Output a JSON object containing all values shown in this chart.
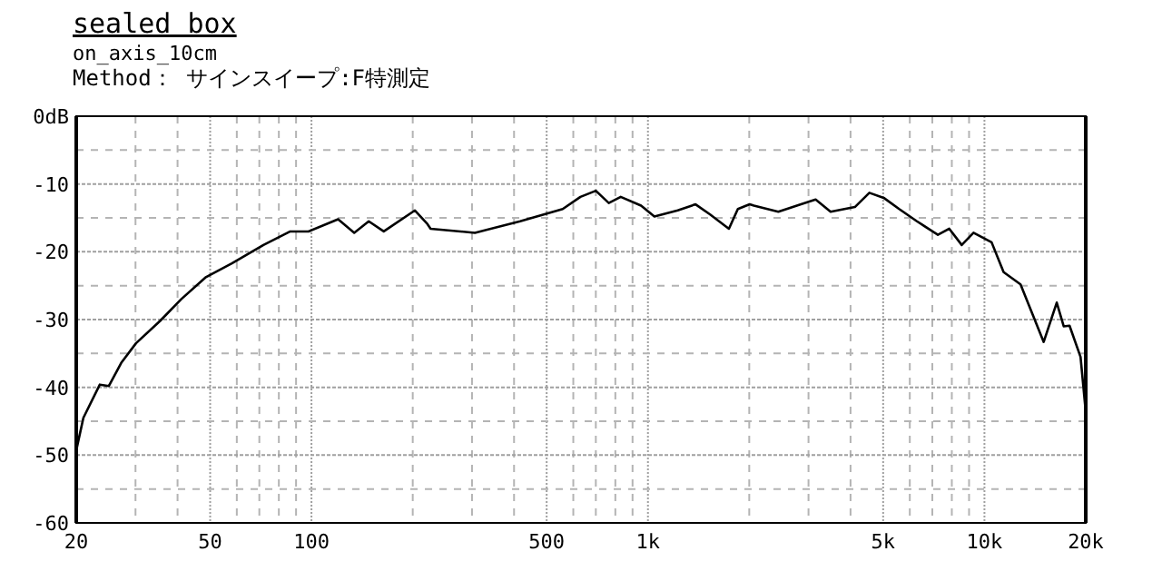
{
  "chart_data": {
    "type": "line",
    "title": "sealed box",
    "subtitle": "on_axis_10cm",
    "annotations": [
      "Method： サインスイープ:F特測定"
    ],
    "log": "x",
    "grid": true,
    "marker": "none",
    "line_style": "solid",
    "xlim": [
      20,
      20000
    ],
    "ylim": [
      -60,
      0
    ],
    "xticks": [
      20,
      {
        "value": 30,
        "label": null
      },
      {
        "value": 40,
        "label": null
      },
      50,
      {
        "value": 60,
        "label": null
      },
      {
        "value": 70,
        "label": null
      },
      {
        "value": 80,
        "label": null
      },
      {
        "value": 90,
        "label": null
      },
      100,
      {
        "value": 200,
        "label": null
      },
      {
        "value": 300,
        "label": null
      },
      {
        "value": 400,
        "label": null
      },
      500,
      {
        "value": 600,
        "label": null
      },
      {
        "value": 700,
        "label": null
      },
      {
        "value": 800,
        "label": null
      },
      {
        "value": 900,
        "label": null
      },
      {
        "value": 1000,
        "label": "1k"
      },
      {
        "value": 2000,
        "label": null
      },
      {
        "value": 3000,
        "label": null
      },
      {
        "value": 4000,
        "label": null
      },
      {
        "value": 5000,
        "label": "5k"
      },
      {
        "value": 6000,
        "label": null
      },
      {
        "value": 7000,
        "label": null
      },
      {
        "value": 8000,
        "label": null
      },
      {
        "value": 9000,
        "label": null
      },
      {
        "value": 10000,
        "label": "10k"
      },
      {
        "value": 20000,
        "label": "20k"
      }
    ],
    "yticks": [
      {
        "value": 0,
        "label": "0dB"
      },
      {
        "value": -5,
        "label": null
      },
      -10,
      {
        "value": -15,
        "label": null
      },
      -20,
      {
        "value": -25,
        "label": null
      },
      -30,
      {
        "value": -35,
        "label": null
      },
      -40,
      {
        "value": -45,
        "label": null
      },
      -50,
      {
        "value": -55,
        "label": null
      },
      -60
    ],
    "series": [
      {
        "color": "#000000",
        "x": [
          20,
          21,
          23.5,
          25,
          27.2,
          30.1,
          35.5,
          41,
          48.4,
          58,
          72,
          86.5,
          98,
          120,
          134,
          148,
          164,
          203,
          221,
          226,
          306,
          417,
          558,
          630,
          700,
          765,
          830,
          954,
          1045,
          1226,
          1385,
          1530,
          1740,
          1850,
          2006,
          2065,
          2440,
          2850,
          3150,
          3490,
          4120,
          4550,
          5040,
          5580,
          6300,
          7270,
          7860,
          8560,
          9280,
          10500,
          11400,
          12800,
          15000,
          16400,
          17200,
          17900,
          19300,
          20000
        ],
        "values": [
          -49.3,
          -44.5,
          -39.6,
          -39.8,
          -36.4,
          -33.5,
          -30.2,
          -27,
          -23.8,
          -21.7,
          -19,
          -17,
          -17,
          -15.2,
          -17.2,
          -15.5,
          -17,
          -13.9,
          -15.9,
          -16.6,
          -17.2,
          -15.5,
          -13.7,
          -11.9,
          -11,
          -12.8,
          -11.9,
          -13.2,
          -14.8,
          -13.9,
          -13,
          -14.5,
          -16.6,
          -13.7,
          -13,
          -13.2,
          -14.1,
          -13,
          -12.3,
          -14.1,
          -13.4,
          -11.3,
          -12.1,
          -13.7,
          -15.5,
          -17.5,
          -16.6,
          -19,
          -17.2,
          -18.6,
          -23,
          -24.8,
          -33.3,
          -27.5,
          -31,
          -30.9,
          -35.5,
          -43.6
        ]
      }
    ]
  }
}
